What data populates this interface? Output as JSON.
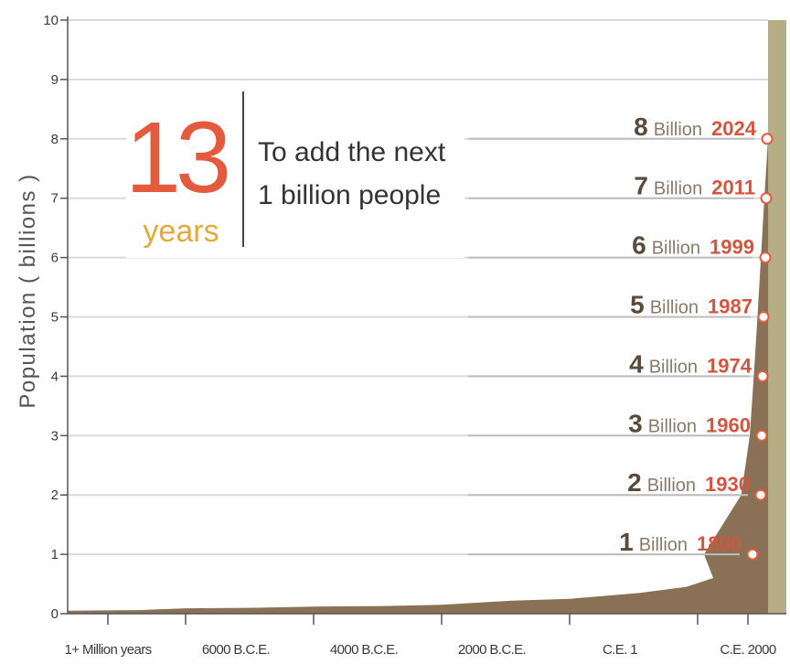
{
  "chart_data": {
    "type": "area",
    "ylabel": "Population ( billions )",
    "ylim": [
      0,
      10
    ],
    "yticks": [
      0,
      1,
      2,
      3,
      4,
      5,
      6,
      7,
      8,
      9,
      10
    ],
    "x_tick_labels": [
      "1+ Million years",
      "6000 B.C.E.",
      "4000 B.C.E.",
      "2000 B.C.E.",
      "C.E. 1",
      "C.E. 2000"
    ],
    "grid": true,
    "series": [
      {
        "x": [
          "1+ Million years",
          "6000 B.C.E.",
          "4000 B.C.E.",
          "2000 B.C.E.",
          "C.E. 1",
          "1800",
          "1930",
          "1960",
          "1974",
          "1987",
          "1999",
          "2011",
          "2024"
        ],
        "values": [
          0.01,
          0.05,
          0.07,
          0.1,
          0.2,
          1,
          2,
          3,
          4,
          5,
          6,
          7,
          8
        ]
      }
    ],
    "milestones": [
      {
        "billion": "1",
        "unit": "Billion",
        "year": "1800"
      },
      {
        "billion": "2",
        "unit": "Billion",
        "year": "1930"
      },
      {
        "billion": "3",
        "unit": "Billion",
        "year": "1960"
      },
      {
        "billion": "4",
        "unit": "Billion",
        "year": "1974"
      },
      {
        "billion": "5",
        "unit": "Billion",
        "year": "1987"
      },
      {
        "billion": "6",
        "unit": "Billion",
        "year": "1999"
      },
      {
        "billion": "7",
        "unit": "Billion",
        "year": "2011"
      },
      {
        "billion": "8",
        "unit": "Billion",
        "year": "2024"
      }
    ],
    "callout": {
      "number": "13",
      "unit": "years",
      "text_lines": [
        "To add the next",
        "1 billion people"
      ]
    },
    "colors": {
      "area": "#8a7155",
      "band": "#b5ad86",
      "grid": "#d9d9d9",
      "marker": "#e35a3c",
      "milestone_year": "#d2553f",
      "callout_number": "#e35a3c",
      "callout_unit": "#e3a93a"
    }
  }
}
